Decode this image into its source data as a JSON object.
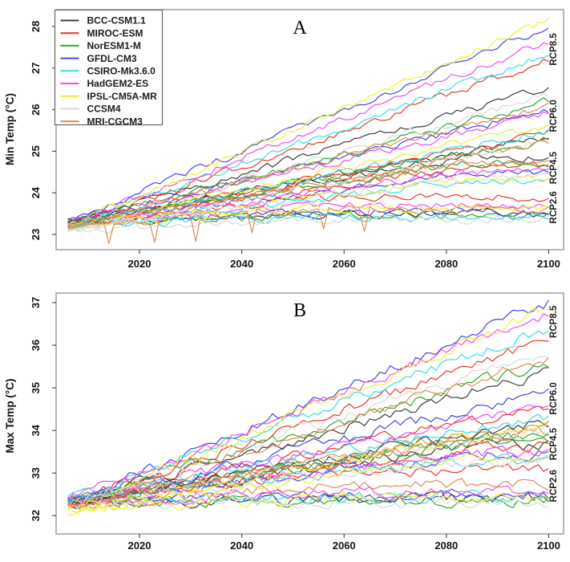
{
  "colors": {
    "background": "#ffffff",
    "axis_box": "#8f8f8f",
    "tick_mark": "#4d4d4d",
    "tick_text": "#141414"
  },
  "models": [
    {
      "name": "BCC-CSM1.1",
      "color": "#3d3d3d"
    },
    {
      "name": "MIROC-ESM",
      "color": "#ea392b"
    },
    {
      "name": "NorESM1-M",
      "color": "#33a532"
    },
    {
      "name": "GFDL-CM3",
      "color": "#4646e8"
    },
    {
      "name": "CSIRO-Mk3.6.0",
      "color": "#35dde6"
    },
    {
      "name": "HadGEM2-ES",
      "color": "#ef4cef"
    },
    {
      "name": "IPSL-CM5A-MR",
      "color": "#f2ee2f"
    },
    {
      "name": "CCSM4",
      "color": "#d9d9d9"
    },
    {
      "name": "MRI-CGCM3",
      "color": "#df8c55"
    }
  ],
  "chart_data": [
    {
      "type": "line",
      "panel_label": "A",
      "ylabel": "Min Temp (°C)",
      "xlabel": "",
      "x_range": [
        2006,
        2100
      ],
      "x_step_years": 1,
      "xticks": [
        2020,
        2040,
        2060,
        2080,
        2100
      ],
      "yticks": [
        23,
        24,
        25,
        26,
        27,
        28
      ],
      "ylim": [
        22.6,
        28.4
      ],
      "grid": false,
      "legend_position": "top-left",
      "noise_amplitude": 0.085,
      "dip_depth": 0.55,
      "scenario_saturation": {
        "RCP2.6": 0.5,
        "RCP4.5": 0.82,
        "RCP6.0": 1.0,
        "RCP8.5": 1.0
      },
      "scenario_labels": [
        {
          "label": "RCP8.5",
          "at_value": 27.45
        },
        {
          "label": "RCP6.0",
          "at_value": 25.85
        },
        {
          "label": "RCP4.5",
          "at_value": 24.6
        },
        {
          "label": "RCP2.6",
          "at_value": 23.65
        }
      ],
      "series": [
        {
          "model": "BCC-CSM1.1",
          "scenario": "RCP2.6",
          "start": 23.3,
          "end": 23.5
        },
        {
          "model": "MIROC-ESM",
          "scenario": "RCP2.6",
          "start": 23.18,
          "end": 23.9
        },
        {
          "model": "NorESM1-M",
          "scenario": "RCP2.6",
          "start": 23.25,
          "end": 23.45
        },
        {
          "model": "GFDL-CM3",
          "scenario": "RCP2.6",
          "start": 23.3,
          "end": 23.55
        },
        {
          "model": "CSIRO-Mk3.6.0",
          "scenario": "RCP2.6",
          "start": 23.2,
          "end": 23.4
        },
        {
          "model": "HadGEM2-ES",
          "scenario": "RCP2.6",
          "start": 23.25,
          "end": 23.7
        },
        {
          "model": "IPSL-CM5A-MR",
          "scenario": "RCP2.6",
          "start": 23.18,
          "end": 23.65
        },
        {
          "model": "CCSM4",
          "scenario": "RCP2.6",
          "start": 23.1,
          "end": 23.35
        },
        {
          "model": "MRI-CGCM3",
          "scenario": "RCP2.6",
          "start": 23.2,
          "end": 23.6,
          "dips": [
            2014,
            2023,
            2031,
            2042,
            2056,
            2064
          ]
        },
        {
          "model": "BCC-CSM1.1",
          "scenario": "RCP4.5",
          "start": 23.3,
          "end": 24.85
        },
        {
          "model": "MIROC-ESM",
          "scenario": "RCP4.5",
          "start": 23.18,
          "end": 24.65
        },
        {
          "model": "NorESM1-M",
          "scenario": "RCP4.5",
          "start": 23.25,
          "end": 24.7
        },
        {
          "model": "GFDL-CM3",
          "scenario": "RCP4.5",
          "start": 23.3,
          "end": 24.45
        },
        {
          "model": "CSIRO-Mk3.6.0",
          "scenario": "RCP4.5",
          "start": 23.2,
          "end": 24.25
        },
        {
          "model": "HadGEM2-ES",
          "scenario": "RCP4.5",
          "start": 23.25,
          "end": 24.5
        },
        {
          "model": "IPSL-CM5A-MR",
          "scenario": "RCP4.5",
          "start": 23.18,
          "end": 24.35
        },
        {
          "model": "CCSM4",
          "scenario": "RCP4.5",
          "start": 23.1,
          "end": 24.4
        },
        {
          "model": "MRI-CGCM3",
          "scenario": "RCP4.5",
          "start": 23.2,
          "end": 24.75
        },
        {
          "model": "BCC-CSM1.1",
          "scenario": "RCP6.0",
          "start": 23.3,
          "end": 25.35
        },
        {
          "model": "MIROC-ESM",
          "scenario": "RCP6.0",
          "start": 23.18,
          "end": 25.45
        },
        {
          "model": "NorESM1-M",
          "scenario": "RCP6.0",
          "start": 23.25,
          "end": 25.3
        },
        {
          "model": "GFDL-CM3",
          "scenario": "RCP6.0",
          "start": 23.3,
          "end": 26.0
        },
        {
          "model": "CSIRO-Mk3.6.0",
          "scenario": "RCP6.0",
          "start": 23.2,
          "end": 25.5
        },
        {
          "model": "HadGEM2-ES",
          "scenario": "RCP6.0",
          "start": 23.25,
          "end": 25.95
        },
        {
          "model": "IPSL-CM5A-MR",
          "scenario": "RCP6.0",
          "start": 23.18,
          "end": 25.65
        },
        {
          "model": "CCSM4",
          "scenario": "RCP6.0",
          "start": 23.1,
          "end": 25.25
        },
        {
          "model": "MRI-CGCM3",
          "scenario": "RCP6.0",
          "start": 23.2,
          "end": 25.2
        },
        {
          "model": "BCC-CSM1.1",
          "scenario": "RCP8.5",
          "start": 23.3,
          "end": 26.5
        },
        {
          "model": "MIROC-ESM",
          "scenario": "RCP8.5",
          "start": 23.18,
          "end": 27.2
        },
        {
          "model": "NorESM1-M",
          "scenario": "RCP8.5",
          "start": 23.25,
          "end": 26.2
        },
        {
          "model": "GFDL-CM3",
          "scenario": "RCP8.5",
          "start": 23.3,
          "end": 28.0
        },
        {
          "model": "CSIRO-Mk3.6.0",
          "scenario": "RCP8.5",
          "start": 23.2,
          "end": 27.35
        },
        {
          "model": "HadGEM2-ES",
          "scenario": "RCP8.5",
          "start": 23.25,
          "end": 27.65
        },
        {
          "model": "IPSL-CM5A-MR",
          "scenario": "RCP8.5",
          "start": 23.18,
          "end": 28.15
        },
        {
          "model": "CCSM4",
          "scenario": "RCP8.5",
          "start": 23.1,
          "end": 26.35
        },
        {
          "model": "MRI-CGCM3",
          "scenario": "RCP8.5",
          "start": 23.2,
          "end": 26.1
        }
      ]
    },
    {
      "type": "line",
      "panel_label": "B",
      "ylabel": "Max Temp (°C)",
      "xlabel": "",
      "x_range": [
        2006,
        2100
      ],
      "x_step_years": 1,
      "xticks": [
        2020,
        2040,
        2060,
        2080,
        2100
      ],
      "yticks": [
        32,
        33,
        34,
        35,
        36,
        37
      ],
      "ylim": [
        31.6,
        37.25
      ],
      "grid": false,
      "legend_position": "none",
      "noise_amplitude": 0.115,
      "dip_depth": 0.45,
      "scenario_saturation": {
        "RCP2.6": 0.55,
        "RCP4.5": 0.85,
        "RCP6.0": 1.0,
        "RCP8.5": 1.0
      },
      "scenario_labels": [
        {
          "label": "RCP8.5",
          "at_value": 36.55
        },
        {
          "label": "RCP6.0",
          "at_value": 34.75
        },
        {
          "label": "RCP4.5",
          "at_value": 33.68
        },
        {
          "label": "RCP2.6",
          "at_value": 32.7
        }
      ],
      "series": [
        {
          "model": "BCC-CSM1.1",
          "scenario": "RCP2.6",
          "start": 32.3,
          "end": 32.4
        },
        {
          "model": "MIROC-ESM",
          "scenario": "RCP2.6",
          "start": 32.3,
          "end": 33.05
        },
        {
          "model": "NorESM1-M",
          "scenario": "RCP2.6",
          "start": 32.35,
          "end": 32.35
        },
        {
          "model": "GFDL-CM3",
          "scenario": "RCP2.6",
          "start": 32.3,
          "end": 32.5
        },
        {
          "model": "CSIRO-Mk3.6.0",
          "scenario": "RCP2.6",
          "start": 32.4,
          "end": 32.45
        },
        {
          "model": "HadGEM2-ES",
          "scenario": "RCP2.6",
          "start": 32.35,
          "end": 32.55
        },
        {
          "model": "IPSL-CM5A-MR",
          "scenario": "RCP2.6",
          "start": 32.1,
          "end": 32.45
        },
        {
          "model": "CCSM4",
          "scenario": "RCP2.6",
          "start": 32.3,
          "end": 32.3
        },
        {
          "model": "MRI-CGCM3",
          "scenario": "RCP2.6",
          "start": 32.25,
          "end": 32.75
        },
        {
          "model": "BCC-CSM1.1",
          "scenario": "RCP4.5",
          "start": 32.3,
          "end": 33.65
        },
        {
          "model": "MIROC-ESM",
          "scenario": "RCP4.5",
          "start": 32.3,
          "end": 33.6
        },
        {
          "model": "NorESM1-M",
          "scenario": "RCP4.5",
          "start": 32.35,
          "end": 33.8
        },
        {
          "model": "GFDL-CM3",
          "scenario": "RCP4.5",
          "start": 32.3,
          "end": 33.45
        },
        {
          "model": "CSIRO-Mk3.6.0",
          "scenario": "RCP4.5",
          "start": 32.4,
          "end": 33.35
        },
        {
          "model": "HadGEM2-ES",
          "scenario": "RCP4.5",
          "start": 32.35,
          "end": 33.5
        },
        {
          "model": "IPSL-CM5A-MR",
          "scenario": "RCP4.5",
          "start": 32.1,
          "end": 33.45
        },
        {
          "model": "CCSM4",
          "scenario": "RCP4.5",
          "start": 32.3,
          "end": 33.3
        },
        {
          "model": "MRI-CGCM3",
          "scenario": "RCP4.5",
          "start": 32.25,
          "end": 33.95
        },
        {
          "model": "BCC-CSM1.1",
          "scenario": "RCP6.0",
          "start": 32.3,
          "end": 34.2
        },
        {
          "model": "MIROC-ESM",
          "scenario": "RCP6.0",
          "start": 32.3,
          "end": 34.6
        },
        {
          "model": "NorESM1-M",
          "scenario": "RCP6.0",
          "start": 32.35,
          "end": 34.0
        },
        {
          "model": "GFDL-CM3",
          "scenario": "RCP6.0",
          "start": 32.3,
          "end": 34.9
        },
        {
          "model": "CSIRO-Mk3.6.0",
          "scenario": "RCP6.0",
          "start": 32.4,
          "end": 34.35
        },
        {
          "model": "HadGEM2-ES",
          "scenario": "RCP6.0",
          "start": 32.35,
          "end": 34.6
        },
        {
          "model": "IPSL-CM5A-MR",
          "scenario": "RCP6.0",
          "start": 32.1,
          "end": 34.15
        },
        {
          "model": "CCSM4",
          "scenario": "RCP6.0",
          "start": 32.3,
          "end": 34.05
        },
        {
          "model": "MRI-CGCM3",
          "scenario": "RCP6.0",
          "start": 32.25,
          "end": 34.1
        },
        {
          "model": "BCC-CSM1.1",
          "scenario": "RCP8.5",
          "start": 32.3,
          "end": 35.4
        },
        {
          "model": "MIROC-ESM",
          "scenario": "RCP8.5",
          "start": 32.3,
          "end": 36.15
        },
        {
          "model": "NorESM1-M",
          "scenario": "RCP8.5",
          "start": 32.35,
          "end": 35.6
        },
        {
          "model": "GFDL-CM3",
          "scenario": "RCP8.5",
          "start": 32.3,
          "end": 37.0
        },
        {
          "model": "CSIRO-Mk3.6.0",
          "scenario": "RCP8.5",
          "start": 32.4,
          "end": 36.4
        },
        {
          "model": "HadGEM2-ES",
          "scenario": "RCP8.5",
          "start": 32.35,
          "end": 36.75
        },
        {
          "model": "IPSL-CM5A-MR",
          "scenario": "RCP8.5",
          "start": 32.1,
          "end": 36.9
        },
        {
          "model": "CCSM4",
          "scenario": "RCP8.5",
          "start": 32.3,
          "end": 35.85
        },
        {
          "model": "MRI-CGCM3",
          "scenario": "RCP8.5",
          "start": 32.25,
          "end": 35.7
        }
      ]
    }
  ]
}
